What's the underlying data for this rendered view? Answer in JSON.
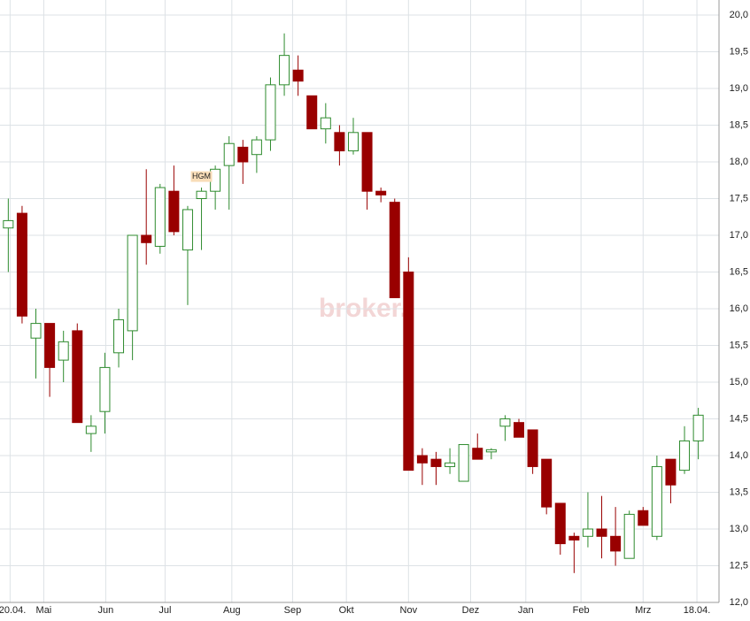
{
  "chart_data": {
    "type": "candlestick",
    "watermark": "broker.",
    "annotations": [
      {
        "text": "HGM",
        "x": 15,
        "y": 17.8
      }
    ],
    "x": [
      1,
      2,
      3,
      4,
      5,
      6,
      7,
      8,
      9,
      10,
      11,
      12,
      13,
      14,
      15,
      16,
      17,
      18,
      19,
      20,
      21,
      22,
      23,
      24,
      25,
      26,
      27,
      28,
      29,
      30,
      31,
      32,
      33,
      34,
      35,
      36,
      37,
      38,
      39,
      40,
      41,
      42,
      43,
      44,
      45,
      46,
      47,
      48,
      49,
      50,
      51
    ],
    "open": [
      17.1,
      17.3,
      15.6,
      15.8,
      15.3,
      15.7,
      14.3,
      14.6,
      15.4,
      15.7,
      17.0,
      16.85,
      17.6,
      16.8,
      17.5,
      17.6,
      17.95,
      18.2,
      18.1,
      18.3,
      19.05,
      19.25,
      18.9,
      18.45,
      18.4,
      18.15,
      18.4,
      17.6,
      17.45,
      16.5,
      14.0,
      13.95,
      13.85,
      13.65,
      14.1,
      14.05,
      14.4,
      14.45,
      14.35,
      13.95,
      13.35,
      12.9,
      12.9,
      13.0,
      12.9,
      12.6,
      13.25,
      12.9,
      13.95,
      13.8,
      14.2
    ],
    "high": [
      17.5,
      17.4,
      16.0,
      15.8,
      15.7,
      15.8,
      14.55,
      15.4,
      16.0,
      17.0,
      17.9,
      17.7,
      17.95,
      17.4,
      17.65,
      17.95,
      18.35,
      18.3,
      18.35,
      19.15,
      19.75,
      19.45,
      18.9,
      18.8,
      18.5,
      18.6,
      18.4,
      17.65,
      17.5,
      16.7,
      14.1,
      14.05,
      14.1,
      14.15,
      14.3,
      14.1,
      14.55,
      14.5,
      14.35,
      13.95,
      13.35,
      12.95,
      13.5,
      13.45,
      13.3,
      13.25,
      13.3,
      14.0,
      13.95,
      14.4,
      14.65
    ],
    "low": [
      16.5,
      15.8,
      15.05,
      14.8,
      15.0,
      14.45,
      14.05,
      14.3,
      15.2,
      15.3,
      16.6,
      16.75,
      17.0,
      16.05,
      16.8,
      17.35,
      17.35,
      17.7,
      17.85,
      18.15,
      18.9,
      18.9,
      18.45,
      18.25,
      17.95,
      18.1,
      17.35,
      17.45,
      16.15,
      13.8,
      13.6,
      13.6,
      13.75,
      13.65,
      13.95,
      13.95,
      14.2,
      14.25,
      13.75,
      13.2,
      12.65,
      12.4,
      12.75,
      12.6,
      12.5,
      12.6,
      13.05,
      12.85,
      13.35,
      13.75,
      13.95
    ],
    "close": [
      17.2,
      15.9,
      15.8,
      15.2,
      15.55,
      14.45,
      14.4,
      15.2,
      15.85,
      17.0,
      16.9,
      17.65,
      17.05,
      17.35,
      17.6,
      17.9,
      18.25,
      18.0,
      18.3,
      19.05,
      19.45,
      19.1,
      18.45,
      18.6,
      18.15,
      18.4,
      17.6,
      17.55,
      16.15,
      13.8,
      13.9,
      13.85,
      13.9,
      14.15,
      13.95,
      14.08,
      14.5,
      14.25,
      13.85,
      13.3,
      12.8,
      12.85,
      13.0,
      12.9,
      12.7,
      13.2,
      13.05,
      13.85,
      13.6,
      14.2,
      14.55
    ],
    "up_color": "#2e8b2e",
    "down_color": "#990000",
    "xlim": [
      0.4,
      52.5
    ],
    "xticks": [
      {
        "value": 1.13,
        "label": "20.04."
      },
      {
        "value": 3.57,
        "label": "Mai"
      },
      {
        "value": 8.06,
        "label": "Jun"
      },
      {
        "value": 12.36,
        "label": "Jul"
      },
      {
        "value": 17.2,
        "label": "Aug"
      },
      {
        "value": 21.6,
        "label": "Sep"
      },
      {
        "value": 25.5,
        "label": "Okt"
      },
      {
        "value": 30,
        "label": "Nov"
      },
      {
        "value": 34.5,
        "label": "Dez"
      },
      {
        "value": 38.5,
        "label": "Jan"
      },
      {
        "value": 42.5,
        "label": "Feb"
      },
      {
        "value": 47,
        "label": "Mrz"
      },
      {
        "value": 50.9,
        "label": "18.04."
      }
    ],
    "ylim": [
      12,
      20
    ],
    "yticks": [
      {
        "value": 12,
        "label": "12,0"
      },
      {
        "value": 12.5,
        "label": "12,5"
      },
      {
        "value": 13,
        "label": "13,0"
      },
      {
        "value": 13.5,
        "label": "13,5"
      },
      {
        "value": 14,
        "label": "14,0"
      },
      {
        "value": 14.5,
        "label": "14,5"
      },
      {
        "value": 15,
        "label": "15,0"
      },
      {
        "value": 15.5,
        "label": "15,5"
      },
      {
        "value": 16,
        "label": "16,0"
      },
      {
        "value": 16.5,
        "label": "16,5"
      },
      {
        "value": 17,
        "label": "17,0"
      },
      {
        "value": 17.5,
        "label": "17,5"
      },
      {
        "value": 18,
        "label": "18,0"
      },
      {
        "value": 18.5,
        "label": "18,5"
      },
      {
        "value": 19,
        "label": "19,0"
      },
      {
        "value": 19.5,
        "label": "19,5"
      },
      {
        "value": 20,
        "label": "20,0"
      }
    ],
    "grid": true
  }
}
